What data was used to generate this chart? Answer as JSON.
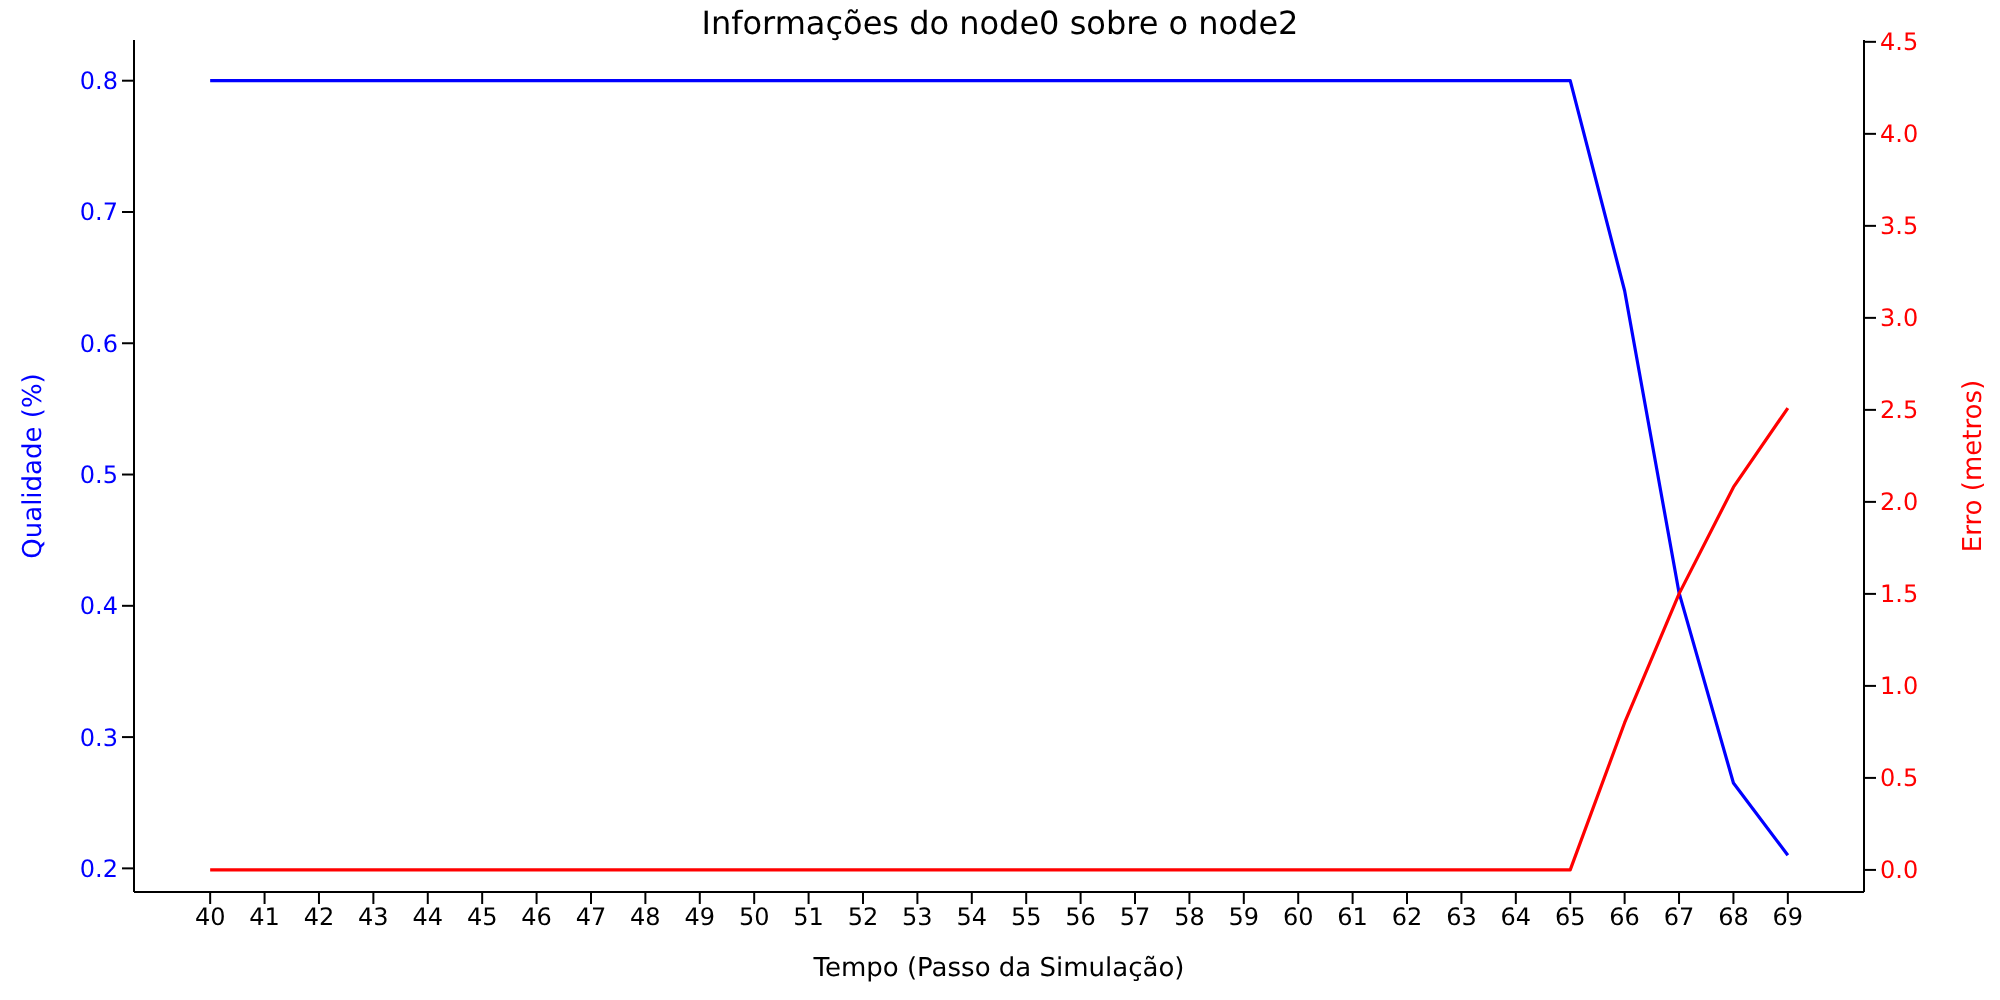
{
  "chart_data": {
    "type": "line",
    "title": "Informações do node0 sobre o node2",
    "xlabel": "Tempo (Passo da Simulação)",
    "ylabel": "Qualidade (%)",
    "y2label": "Erro (metros)",
    "x": [
      40,
      41,
      42,
      43,
      44,
      45,
      46,
      47,
      48,
      49,
      50,
      51,
      52,
      53,
      54,
      55,
      56,
      57,
      58,
      59,
      60,
      61,
      62,
      63,
      64,
      65,
      66,
      67,
      68,
      69
    ],
    "series": [
      {
        "color": "#0000ff",
        "values": [
          0.8,
          0.8,
          0.8,
          0.8,
          0.8,
          0.8,
          0.8,
          0.8,
          0.8,
          0.8,
          0.8,
          0.8,
          0.8,
          0.8,
          0.8,
          0.8,
          0.8,
          0.8,
          0.8,
          0.8,
          0.8,
          0.8,
          0.8,
          0.8,
          0.8,
          0.8,
          0.64,
          0.41,
          0.265,
          0.21
        ]
      },
      {
        "color": "#ff0000",
        "axis": "y2",
        "values": [
          0,
          0,
          0,
          0,
          0,
          0,
          0,
          0,
          0,
          0,
          0,
          0,
          0,
          0,
          0,
          0,
          0,
          0,
          0,
          0,
          0,
          0,
          0,
          0,
          0,
          0,
          0.8,
          1.5,
          2.08,
          2.51
        ]
      }
    ],
    "xlim": [
      38.6,
      70.4
    ],
    "xticks": [
      40,
      41,
      42,
      43,
      44,
      45,
      46,
      47,
      48,
      49,
      50,
      51,
      52,
      53,
      54,
      55,
      56,
      57,
      58,
      59,
      60,
      61,
      62,
      63,
      64,
      65,
      66,
      67,
      68,
      69
    ],
    "ylim": [
      0.182,
      0.831
    ],
    "yticks": [
      0.2,
      0.3,
      0.4,
      0.5,
      0.6,
      0.7,
      0.8
    ],
    "y2lim": [
      -0.12,
      4.51
    ],
    "y2ticks": [
      {
        "value": 0,
        "label": "0.0"
      },
      0.5,
      {
        "value": 1,
        "label": "1.0"
      },
      1.5,
      {
        "value": 2,
        "label": "2.0"
      },
      2.5,
      {
        "value": 3,
        "label": "3.0"
      },
      3.5,
      {
        "value": 4,
        "label": "4.0"
      },
      4.5
    ],
    "grid": false,
    "legend": false,
    "marker": "none",
    "line_style": "solid"
  }
}
